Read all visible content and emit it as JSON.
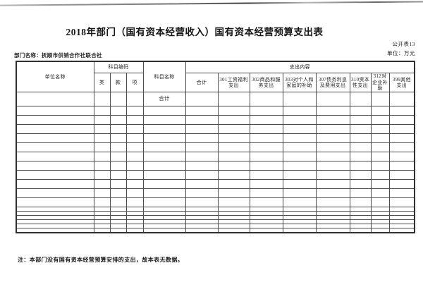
{
  "page": {
    "title": "2018年部门（国有资本经营收入）国有资本经营预算支出表",
    "table_no": "公开表13",
    "unit_note": "单位：万元",
    "department_line": "部门名称：抚顺市供销合作社联合社",
    "footnote": "注：本部门没有国有资本经营预算安排的支出，故本表无数据。"
  },
  "table": {
    "header": {
      "unit_name": "单位名称",
      "subject_code": "科目编码",
      "code_cols": [
        "类",
        "款",
        "项"
      ],
      "subject_name": "科目名称",
      "expense_content": "支出内容",
      "expense_cols": [
        "合计",
        "301工资福利支出",
        "302商品和服务支出",
        "303对个人和家庭的补助",
        "307债务利息及费用支出",
        "310资本性支出",
        "312对企业补助",
        "399其他支出"
      ]
    },
    "body": {
      "total_row_label": "合计",
      "total_label_col_index": 4,
      "columns_count": 13,
      "empty_normal_rows": 11,
      "empty_short_rows": 6
    }
  }
}
